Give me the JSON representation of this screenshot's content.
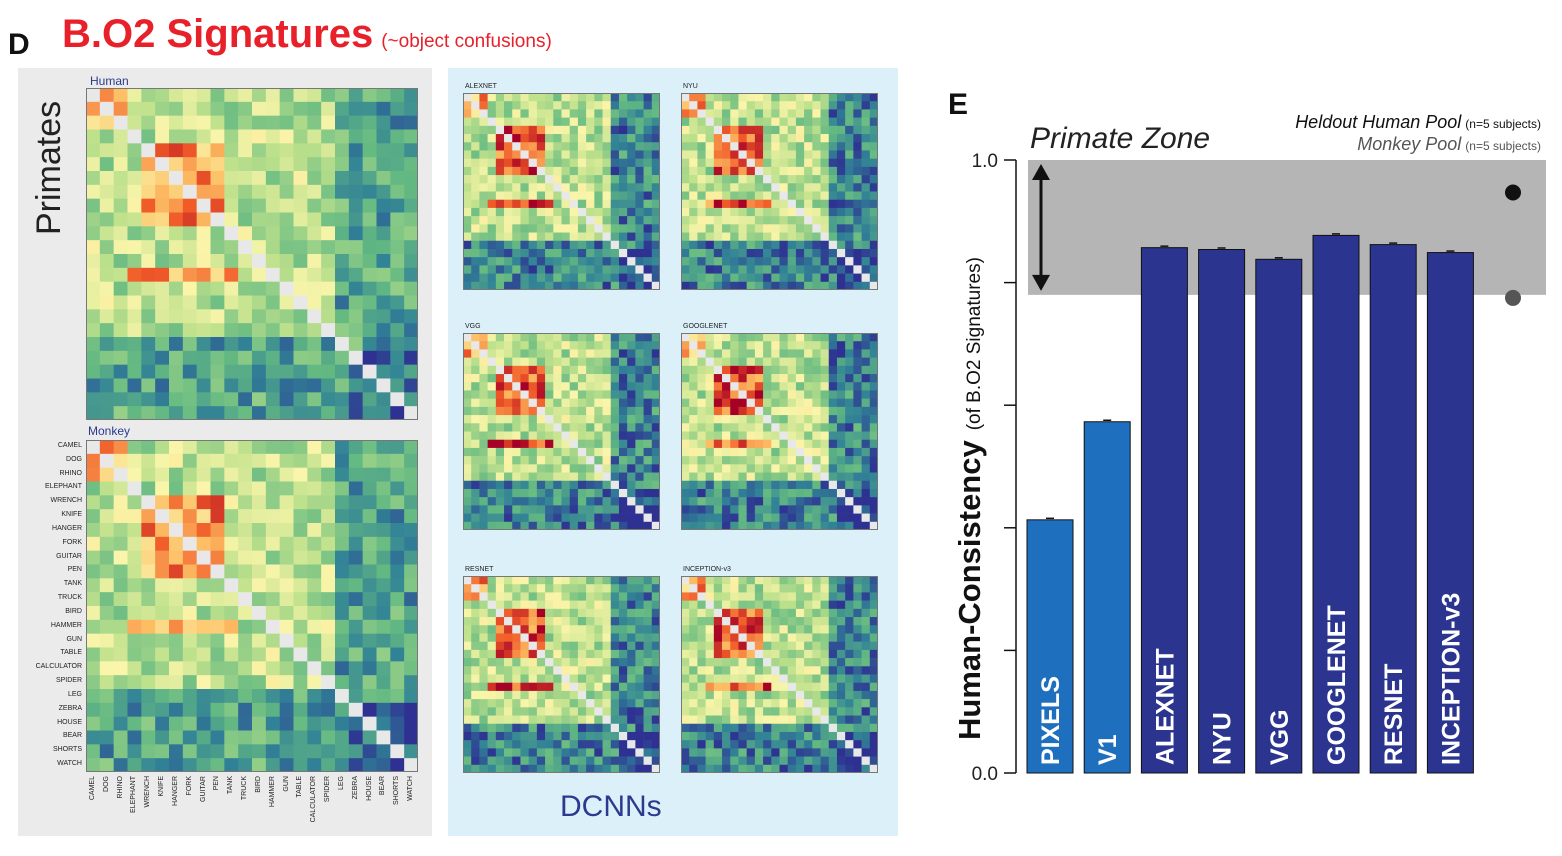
{
  "panel_d": {
    "letter": "D",
    "title": "B.O2 Signatures",
    "subtitle": "(~object confusions)",
    "primates_label": "Primates",
    "human_label": "Human",
    "monkey_label": "Monkey",
    "dcnn_label": "DCNNs",
    "objects": [
      "CAMEL",
      "DOG",
      "RHINO",
      "ELEPHANT",
      "WRENCH",
      "KNIFE",
      "HANGER",
      "FORK",
      "GUITAR",
      "PEN",
      "TANK",
      "TRUCK",
      "BIRD",
      "HAMMER",
      "GUN",
      "TABLE",
      "CALCULATOR",
      "SPIDER",
      "LEG",
      "ZEBRA",
      "HOUSE",
      "BEAR",
      "SHORTS",
      "WATCH"
    ],
    "dcnn_models": [
      "ALEXNET",
      "NYU",
      "VGG",
      "GOOGLENET",
      "RESNET",
      "INCEPTION-v3"
    ]
  },
  "panel_e": {
    "letter": "E"
  },
  "chart_data": {
    "type": "bar",
    "title": "",
    "ylabel": "Human-Consistency",
    "ylabel_sub": "(of B.O2 Signatures)",
    "ylim": [
      0,
      1.0
    ],
    "yticks": [
      "1.0",
      "",
      "",
      "",
      "",
      "0.0"
    ],
    "categories": [
      "PIXELS",
      "V1",
      "ALEXNET",
      "NYU",
      "VGG",
      "GOOGLENET",
      "RESNET",
      "INCEPTION-v3"
    ],
    "values": [
      0.413,
      0.573,
      0.857,
      0.854,
      0.838,
      0.877,
      0.862,
      0.849
    ],
    "bar_colors": [
      "#1f6fbf",
      "#1f6fbf",
      "#2b3590",
      "#2b3590",
      "#2b3590",
      "#2b3590",
      "#2b3590",
      "#2b3590"
    ],
    "primate_zone": {
      "label": "Primate Zone",
      "range": [
        0.78,
        1.0
      ],
      "color": "#b5b5b5"
    },
    "legend": [
      {
        "name": "Heldout Human Pool",
        "note": "(n=5 subjects)",
        "value": 0.947,
        "color": "#111111"
      },
      {
        "name": "Monkey Pool",
        "note": "(n=5 subjects)",
        "value": 0.775,
        "color": "#555555"
      }
    ]
  }
}
